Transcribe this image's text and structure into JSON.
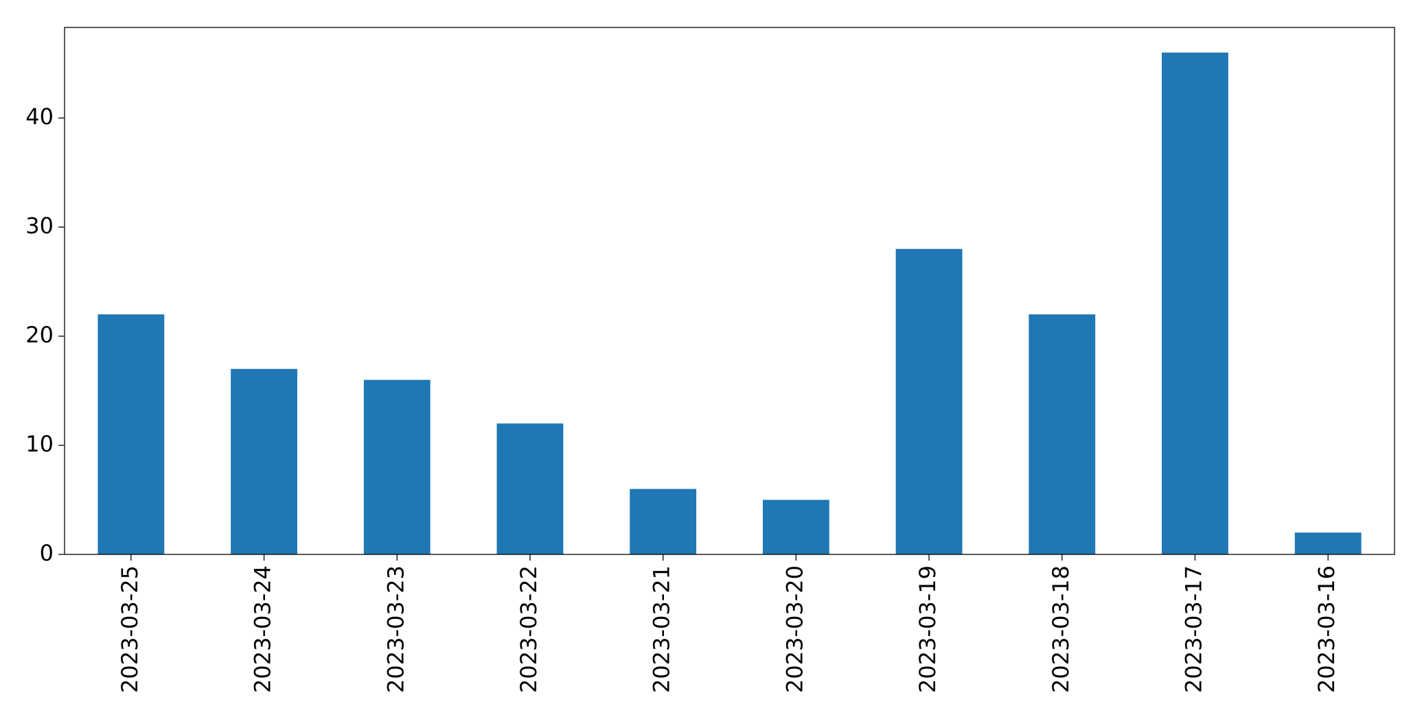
{
  "chart_data": {
    "type": "bar",
    "categories": [
      "2023-03-25",
      "2023-03-24",
      "2023-03-23",
      "2023-03-22",
      "2023-03-21",
      "2023-03-20",
      "2023-03-19",
      "2023-03-18",
      "2023-03-17",
      "2023-03-16"
    ],
    "values": [
      22,
      17,
      16,
      12,
      6,
      5,
      28,
      22,
      46,
      2
    ],
    "color": "#1f77b4",
    "ylim": [
      0,
      48.3
    ],
    "yticks": [
      0,
      10,
      20,
      30,
      40
    ],
    "grid": false
  }
}
